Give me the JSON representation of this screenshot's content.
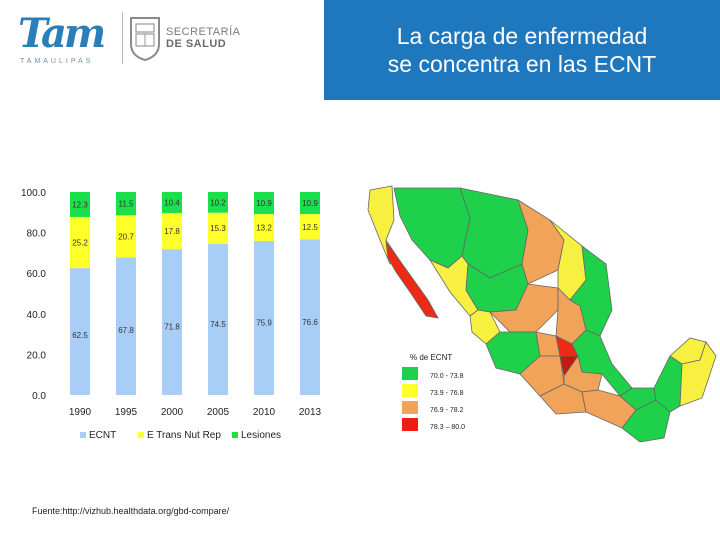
{
  "header": {
    "logo_text": "Tam",
    "logo_subtext": "TAMAULIPAS",
    "secretaria_line1": "SECRETARÍA",
    "secretaria_line2": "DE SALUD",
    "title_line1": "La carga de enfermedad",
    "title_line2": "se concentra en las ECNT",
    "title_bg": "#1f78be"
  },
  "chart_data": [
    {
      "type": "bar",
      "stacked": true,
      "categories": [
        "1990",
        "1995",
        "2000",
        "2005",
        "2010",
        "2013"
      ],
      "series": [
        {
          "name": "ECNT",
          "values": [
            62.5,
            67.8,
            71.8,
            74.5,
            75.9,
            76.6
          ],
          "color": "#a8cdf7",
          "labels": [
            "62.5",
            "67.8",
            "71.8",
            "74.5",
            "75.9",
            "76.6"
          ]
        },
        {
          "name": "E Trans Nut Rep",
          "values": [
            25.2,
            20.7,
            17.8,
            15.3,
            13.2,
            12.5
          ],
          "color": "#ffff2a",
          "labels": [
            "25.2",
            "20.7",
            "17.8",
            "15.3",
            "13.2",
            "12.5"
          ]
        },
        {
          "name": "Lesiones",
          "values": [
            12.3,
            11.5,
            10.4,
            10.2,
            10.9,
            10.9
          ],
          "color": "#19e04b",
          "labels": [
            "12.3",
            "11.5",
            "10.4",
            "10.2",
            "10.9",
            "10.9"
          ]
        }
      ],
      "ylim": [
        0,
        100
      ],
      "yticks": [
        "0.0",
        "20.0",
        "40.0",
        "60.0",
        "80.0",
        "100.0"
      ],
      "grid": false,
      "legend_position": "bottom"
    },
    {
      "type": "map",
      "legend_title": "% de ECNT",
      "legend": [
        {
          "label": "70.0 - 73.8",
          "color": "#1fd04a"
        },
        {
          "label": "73.9 - 76.8",
          "color": "#ffff2a"
        },
        {
          "label": "76.9 - 78.2",
          "color": "#f2a35a"
        },
        {
          "label": "78.3 – 80.0",
          "color": "#f01e12"
        }
      ]
    }
  ],
  "source": "Fuente:http://vizhub.healthdata.org/gbd-compare/"
}
